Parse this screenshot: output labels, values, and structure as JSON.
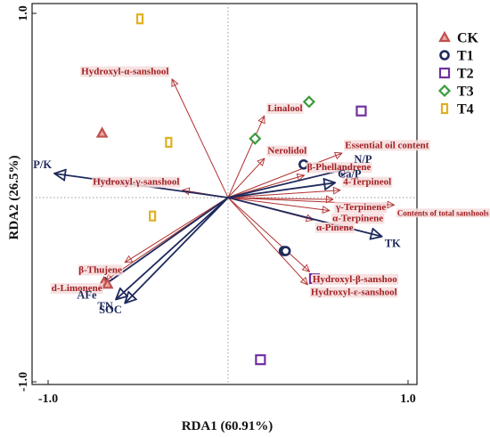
{
  "chart_data": {
    "type": "scatter",
    "subtype": "rda-biplot",
    "title": "",
    "xlabel": "RDA1 (60.91%)",
    "ylabel": "RDA2 (26.5%)",
    "xlim": [
      -1.05,
      1.05
    ],
    "ylim": [
      -1.05,
      1.0
    ],
    "x_ticks": [
      {
        "value": -1.0,
        "label": "-1.0"
      },
      {
        "value": 1.0,
        "label": "1.0"
      }
    ],
    "y_ticks": [
      {
        "value": 1.0,
        "label": "1.0"
      },
      {
        "value": -1.0,
        "label": "-1.0"
      }
    ],
    "reference_lines": {
      "x": 0,
      "y": 0,
      "style": "dotted"
    },
    "colors": {
      "CK": "#c0504d",
      "T1": "#1f2a5c",
      "T2": "#7030a0",
      "T3": "#3a9a3a",
      "T4": "#e0b020",
      "response_arrow": "#b0302f",
      "env_arrow": "#1f2a5c",
      "label_bg": "#f6dcdc"
    },
    "legend": {
      "position": "top-right",
      "entries": [
        {
          "key": "CK",
          "label": "CK",
          "marker": "triangle"
        },
        {
          "key": "T1",
          "label": "T1",
          "marker": "circle"
        },
        {
          "key": "T2",
          "label": "T2",
          "marker": "square"
        },
        {
          "key": "T3",
          "label": "T3",
          "marker": "diamond"
        },
        {
          "key": "T4",
          "label": "T4",
          "marker": "rectangle"
        }
      ]
    },
    "samples": [
      {
        "group": "CK",
        "x": -0.7,
        "y": 0.35
      },
      {
        "group": "CK",
        "x": -0.69,
        "y": -0.46
      },
      {
        "group": "CK",
        "x": -0.67,
        "y": -0.47
      },
      {
        "group": "T1",
        "x": 0.42,
        "y": 0.18
      },
      {
        "group": "T1",
        "x": 0.31,
        "y": -0.29
      },
      {
        "group": "T1",
        "x": 0.32,
        "y": -0.29
      },
      {
        "group": "T2",
        "x": 0.74,
        "y": 0.47
      },
      {
        "group": "T2",
        "x": 0.48,
        "y": -0.44
      },
      {
        "group": "T2",
        "x": 0.18,
        "y": -0.88
      },
      {
        "group": "T3",
        "x": 0.45,
        "y": 0.52
      },
      {
        "group": "T3",
        "x": 0.15,
        "y": 0.32
      },
      {
        "group": "T4",
        "x": -0.49,
        "y": 0.97
      },
      {
        "group": "T4",
        "x": -0.33,
        "y": 0.3
      },
      {
        "group": "T4",
        "x": -0.42,
        "y": -0.1
      }
    ],
    "response_vectors": [
      {
        "label": "Hydroxyl-α-sanshool",
        "x": -0.31,
        "y": 0.64
      },
      {
        "label": "Linalool",
        "x": 0.2,
        "y": 0.44
      },
      {
        "label": "Nerolidol",
        "x": 0.2,
        "y": 0.21
      },
      {
        "label": "Essential oil content",
        "x": 0.63,
        "y": 0.24
      },
      {
        "label": "β-Phellandrene",
        "x": 0.42,
        "y": 0.12
      },
      {
        "label": "4-Terpineol",
        "x": 0.62,
        "y": 0.04
      },
      {
        "label": "γ-Terpinene",
        "x": 0.58,
        "y": -0.01
      },
      {
        "label": "Contents of total sanshools",
        "x": 0.92,
        "y": -0.04
      },
      {
        "label": "α-Terpinene",
        "x": 0.56,
        "y": -0.07
      },
      {
        "label": "α-Pinene",
        "x": 0.47,
        "y": -0.12
      },
      {
        "label": "Hydroxyl-β-sanshoo",
        "x": 0.45,
        "y": -0.4
      },
      {
        "label": "Hydroxyl-ε-sanshool",
        "x": 0.44,
        "y": -0.47
      },
      {
        "label": "Hydroxyl-γ-sanshool",
        "x": -0.25,
        "y": 0.04
      },
      {
        "label": "β-Thujene",
        "x": -0.57,
        "y": -0.35
      },
      {
        "label": "d-Limonene",
        "x": -0.68,
        "y": -0.45
      }
    ],
    "environment_vectors": [
      {
        "label": "P/K",
        "x": -0.96,
        "y": 0.13
      },
      {
        "label": "N/P",
        "x": 0.68,
        "y": 0.16
      },
      {
        "label": "Ca/P",
        "x": 0.59,
        "y": 0.08
      },
      {
        "label": "TK",
        "x": 0.85,
        "y": -0.21
      },
      {
        "label": "AFe",
        "x": -0.71,
        "y": -0.49
      },
      {
        "label": "TN",
        "x": -0.62,
        "y": -0.55
      },
      {
        "label": "SOC",
        "x": -0.57,
        "y": -0.57
      }
    ]
  }
}
